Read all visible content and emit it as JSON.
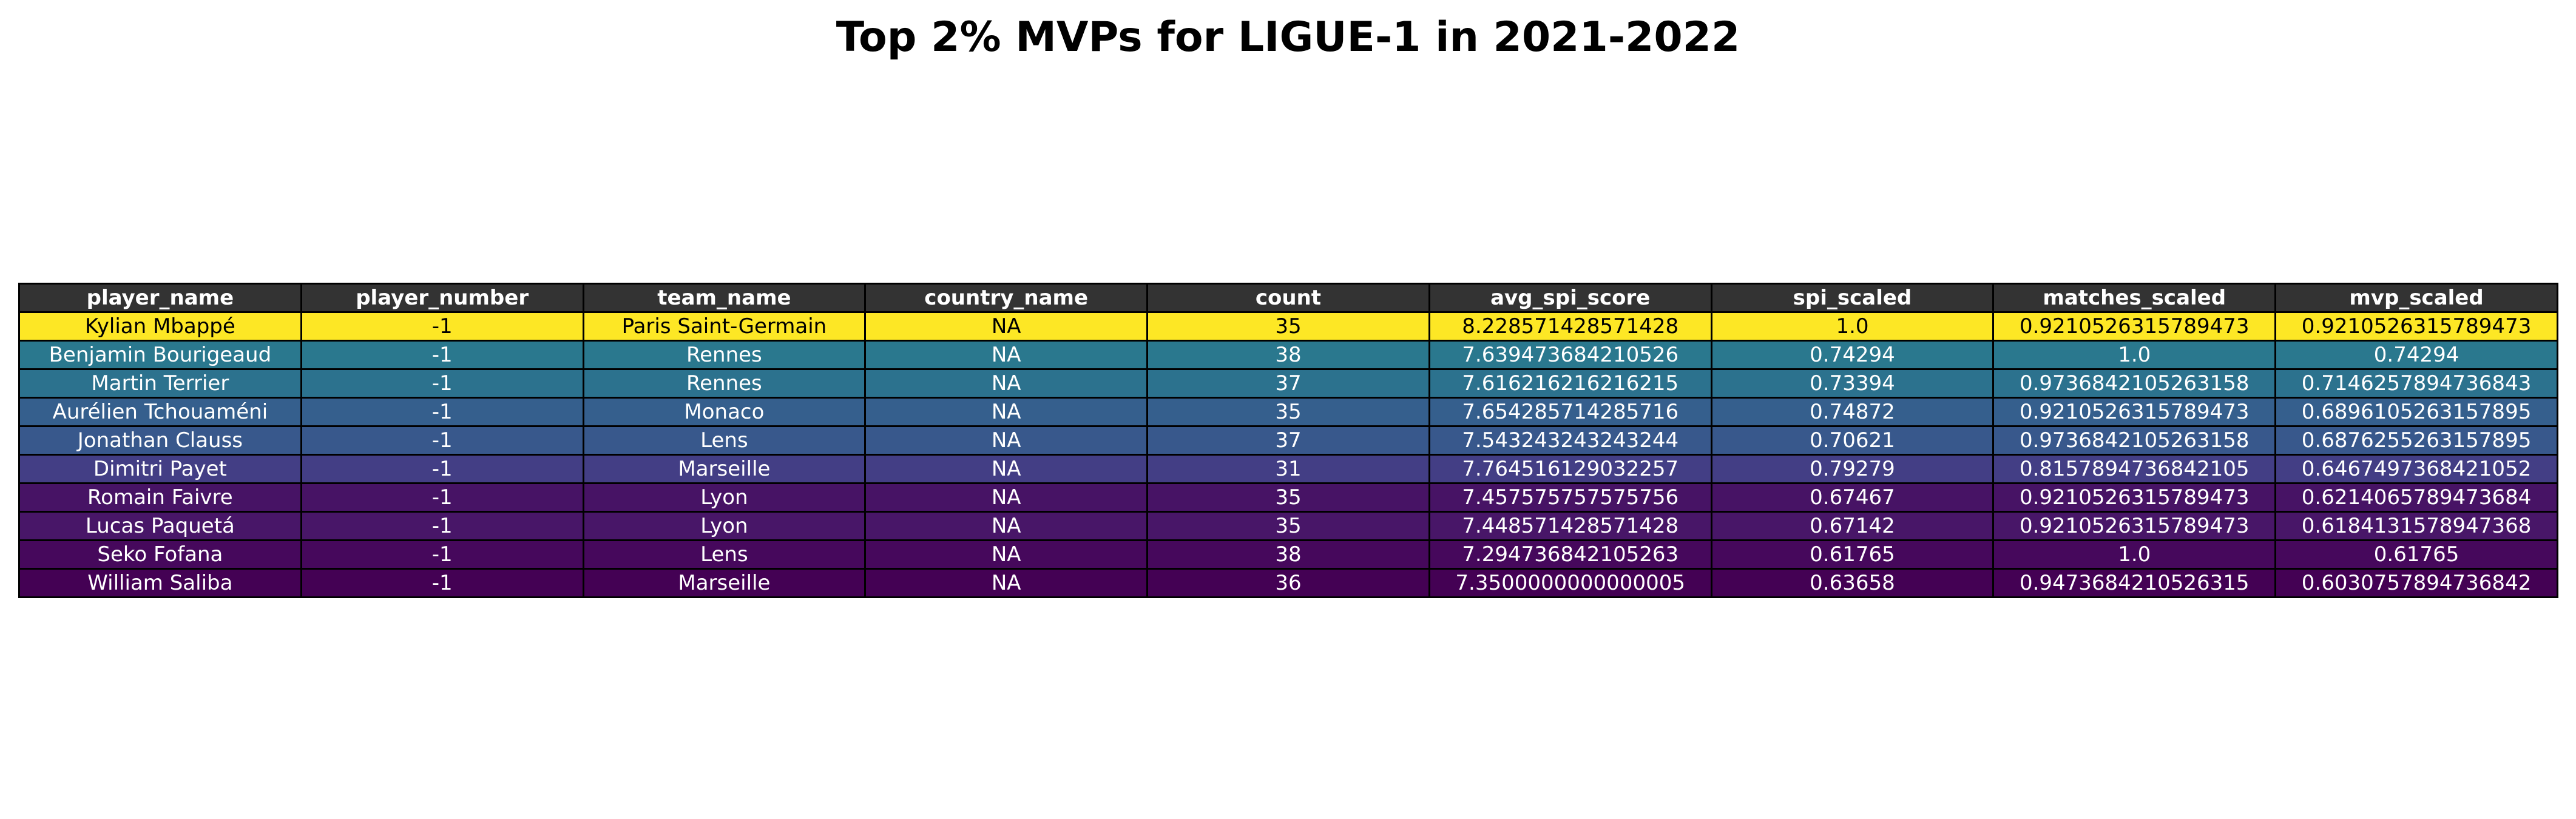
{
  "chart_data": {
    "type": "table",
    "title": "Top 2% MVPs for LIGUE-1 in 2021-2022",
    "columns": [
      "player_name",
      "player_number",
      "team_name",
      "country_name",
      "count",
      "avg_spi_score",
      "spi_scaled",
      "matches_scaled",
      "mvp_scaled"
    ],
    "rows": [
      {
        "cells": [
          "Kylian Mbappé",
          "-1",
          "Paris Saint-Germain",
          "NA",
          "35",
          "8.228571428571428",
          "1.0",
          "0.9210526315789473",
          "0.9210526315789473"
        ],
        "color": "#fde725",
        "text_color": "#000000"
      },
      {
        "cells": [
          "Benjamin Bourigeaud",
          "-1",
          "Rennes",
          "NA",
          "38",
          "7.639473684210526",
          "0.74294",
          "1.0",
          "0.74294"
        ],
        "color": "#2a788e",
        "text_color": "#ffffff"
      },
      {
        "cells": [
          "Martin Terrier",
          "-1",
          "Rennes",
          "NA",
          "37",
          "7.616216216216215",
          "0.73394",
          "0.9736842105263158",
          "0.7146257894736843"
        ],
        "color": "#2c728e",
        "text_color": "#ffffff"
      },
      {
        "cells": [
          "Aurélien Tchouaméni",
          "-1",
          "Monaco",
          "NA",
          "35",
          "7.654285714285716",
          "0.74872",
          "0.9210526315789473",
          "0.6896105263157895"
        ],
        "color": "#355f8d",
        "text_color": "#ffffff"
      },
      {
        "cells": [
          "Jonathan Clauss",
          "-1",
          "Lens",
          "NA",
          "37",
          "7.543243243243244",
          "0.70621",
          "0.9736842105263158",
          "0.6876255263157895"
        ],
        "color": "#38588c",
        "text_color": "#ffffff"
      },
      {
        "cells": [
          "Dimitri Payet",
          "-1",
          "Marseille",
          "NA",
          "31",
          "7.764516129032257",
          "0.79279",
          "0.8157894736842105",
          "0.6467497368421052"
        ],
        "color": "#433e85",
        "text_color": "#ffffff"
      },
      {
        "cells": [
          "Romain Faivre",
          "-1",
          "Lyon",
          "NA",
          "35",
          "7.457575757575756",
          "0.67467",
          "0.9210526315789473",
          "0.6214065789473684"
        ],
        "color": "#471365",
        "text_color": "#ffffff"
      },
      {
        "cells": [
          "Lucas Paquetá",
          "-1",
          "Lyon",
          "NA",
          "35",
          "7.448571428571428",
          "0.67142",
          "0.9210526315789473",
          "0.6184131578947368"
        ],
        "color": "#481668",
        "text_color": "#ffffff"
      },
      {
        "cells": [
          "Seko Fofana",
          "-1",
          "Lens",
          "NA",
          "38",
          "7.294736842105263",
          "0.61765",
          "1.0",
          "0.61765"
        ],
        "color": "#46085c",
        "text_color": "#ffffff"
      },
      {
        "cells": [
          "William Saliba",
          "-1",
          "Marseille",
          "NA",
          "36",
          "7.3500000000000005",
          "0.63658",
          "0.9473684210526315",
          "0.6030757894736842"
        ],
        "color": "#440154",
        "text_color": "#ffffff"
      }
    ]
  }
}
